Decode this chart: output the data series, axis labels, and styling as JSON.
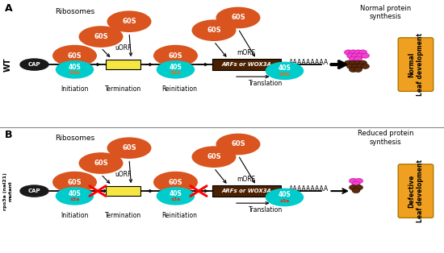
{
  "panel_A_label": "A",
  "panel_B_label": "B",
  "wt_label": "WT",
  "mutant_label": "rps3a (nal21)\nmutant",
  "ribosomes_label": "Ribosomes",
  "normal_protein": "Normal protein\nsynthesis",
  "reduced_protein": "Reduced protein\nsynthesis",
  "normal_leaf": "Normal\nLeaf development",
  "defective_leaf": "Defective\nLeaf development",
  "initiation": "Initiation",
  "termination": "Termination",
  "reinitiation": "Reinitiation",
  "translation": "Translation",
  "uorf": "uORF",
  "morf": "mORF",
  "arfs_wox3a": "ARFs or WOX3A",
  "poly_a": "AAAAAAAAA",
  "cap": "CAP",
  "s60": "60S",
  "s40": "40S",
  "s3a_upper": "S3A",
  "s3a_lower": "s3a",
  "color_60s": "#d9541e",
  "color_40s": "#00cccc",
  "color_cap": "#1a1a1a",
  "color_uorf": "#f5e642",
  "color_morf": "#4a2000",
  "color_cross": "#ff0000",
  "color_leaf_box": "#f0a020",
  "color_pink_dot": "#ee44cc",
  "color_brown_dot": "#5a2a0a",
  "color_morf_text": "#ffffff",
  "color_s3a_upper": "#ff6600",
  "color_s3a_lower": "#ff2200",
  "bg_color": "#ffffff"
}
